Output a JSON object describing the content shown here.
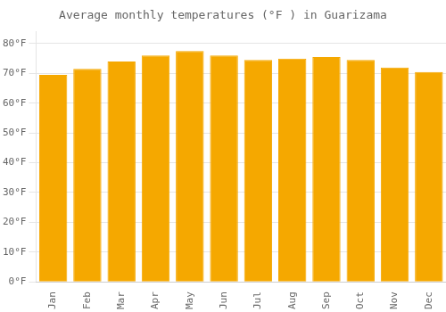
{
  "chart_data": {
    "type": "bar",
    "title": "Average monthly temperatures (°F ) in Guarizama",
    "categories": [
      "Jan",
      "Feb",
      "Mar",
      "Apr",
      "May",
      "Jun",
      "Jul",
      "Aug",
      "Sep",
      "Oct",
      "Nov",
      "Dec"
    ],
    "values": [
      69.5,
      71.5,
      74.0,
      76.0,
      77.5,
      76.0,
      74.5,
      75.0,
      75.5,
      74.5,
      72.0,
      70.5
    ],
    "color": "#F5A800",
    "ylim": [
      0,
      84
    ],
    "yticks": [
      {
        "value": 0,
        "label": "0°F"
      },
      {
        "value": 10,
        "label": "10°F"
      },
      {
        "value": 20,
        "label": "20°F"
      },
      {
        "value": 30,
        "label": "30°F"
      },
      {
        "value": 40,
        "label": "40°F"
      },
      {
        "value": 50,
        "label": "50°F"
      },
      {
        "value": 60,
        "label": "60°F"
      },
      {
        "value": 70,
        "label": "70°F"
      },
      {
        "value": 80,
        "label": "80°F"
      }
    ],
    "grid": true
  }
}
